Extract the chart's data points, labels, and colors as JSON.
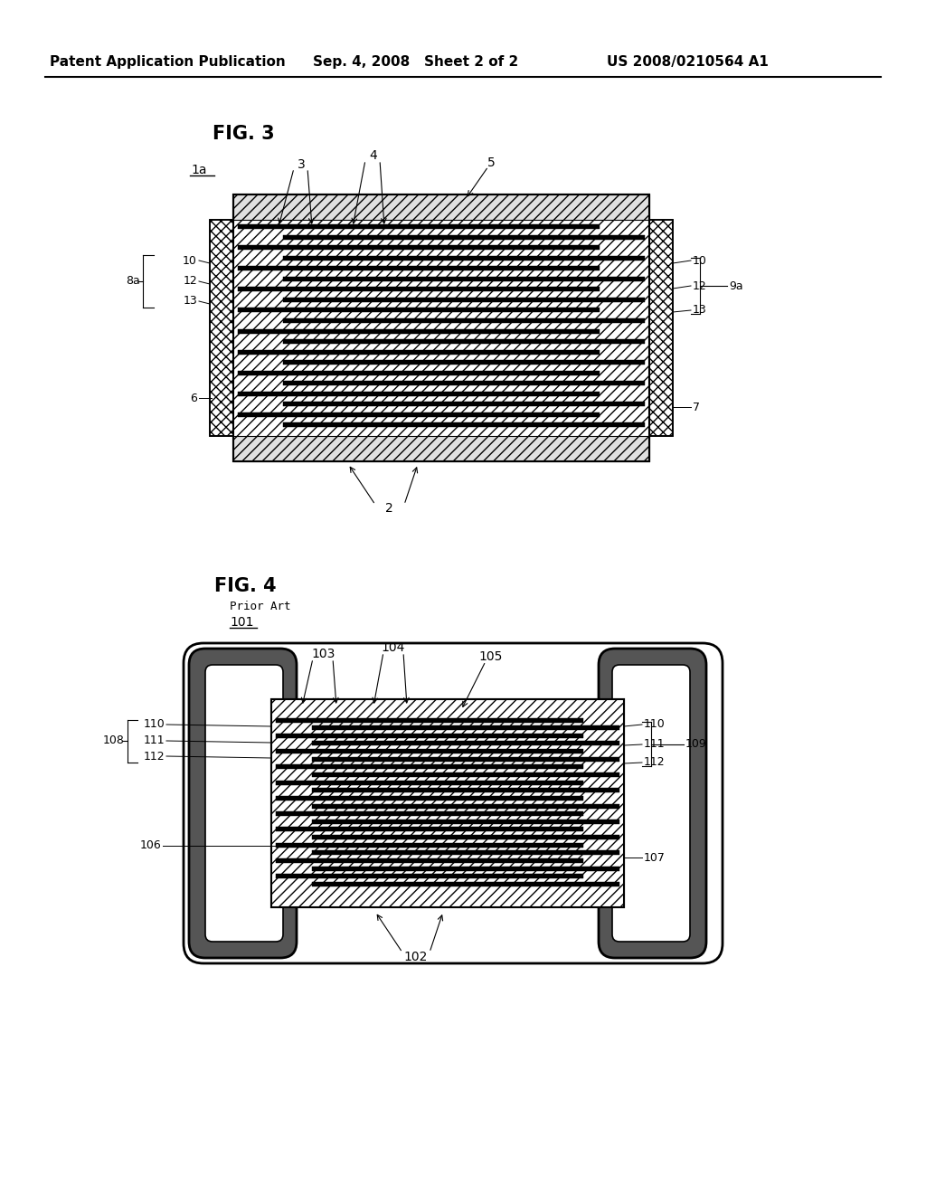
{
  "bg_color": "#ffffff",
  "header_left": "Patent Application Publication",
  "header_mid": "Sep. 4, 2008   Sheet 2 of 2",
  "header_right": "US 2008/0210564 A1",
  "fig3_label": "FIG. 3",
  "fig3_ref": "1a",
  "fig4_label": "FIG. 4",
  "fig4_sub": "Prior Art",
  "fig4_ref": "101"
}
